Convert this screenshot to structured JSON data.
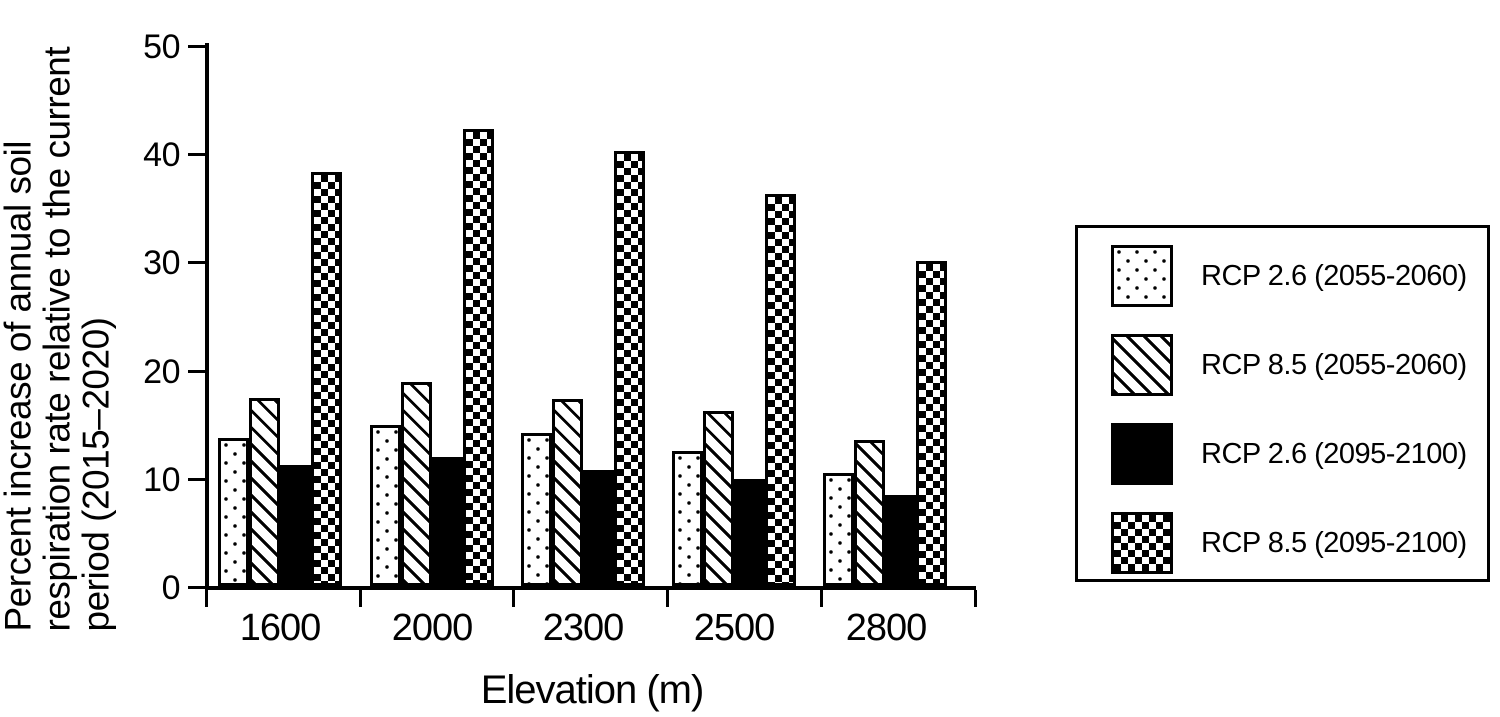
{
  "chart_data": {
    "type": "bar",
    "title": "",
    "xlabel": "Elevation (m)",
    "ylabel": "Percent increase of annual soil respiration rate relative to the current period (2015–2020)",
    "ylabel_lines": [
      "Percent increase of annual soil",
      "respiration rate relative to the current",
      "period (2015–2020)"
    ],
    "categories": [
      "1600",
      "2000",
      "2300",
      "2500",
      "2800"
    ],
    "series": [
      {
        "name": "RCP 2.6 (2055-2060)",
        "pattern": "dots",
        "values": [
          13.7,
          14.9,
          14.1,
          12.5,
          10.4
        ]
      },
      {
        "name": "RCP 8.5 (2055-2060)",
        "pattern": "diagonal-stripes",
        "values": [
          17.4,
          18.9,
          17.3,
          16.2,
          13.5
        ]
      },
      {
        "name": "RCP 2.6 (2095-2100)",
        "pattern": "solid-black",
        "values": [
          11.2,
          11.9,
          10.7,
          9.9,
          8.4
        ]
      },
      {
        "name": "RCP 8.5 (2095-2100)",
        "pattern": "checkerboard",
        "values": [
          38.3,
          42.2,
          40.2,
          36.2,
          30.0
        ]
      }
    ],
    "ylim": [
      0,
      50
    ],
    "yticks": [
      0,
      10,
      20,
      30,
      40,
      50
    ],
    "grid": false,
    "legend_position": "right",
    "colors": {
      "foreground": "#000000",
      "background": "#ffffff"
    }
  }
}
